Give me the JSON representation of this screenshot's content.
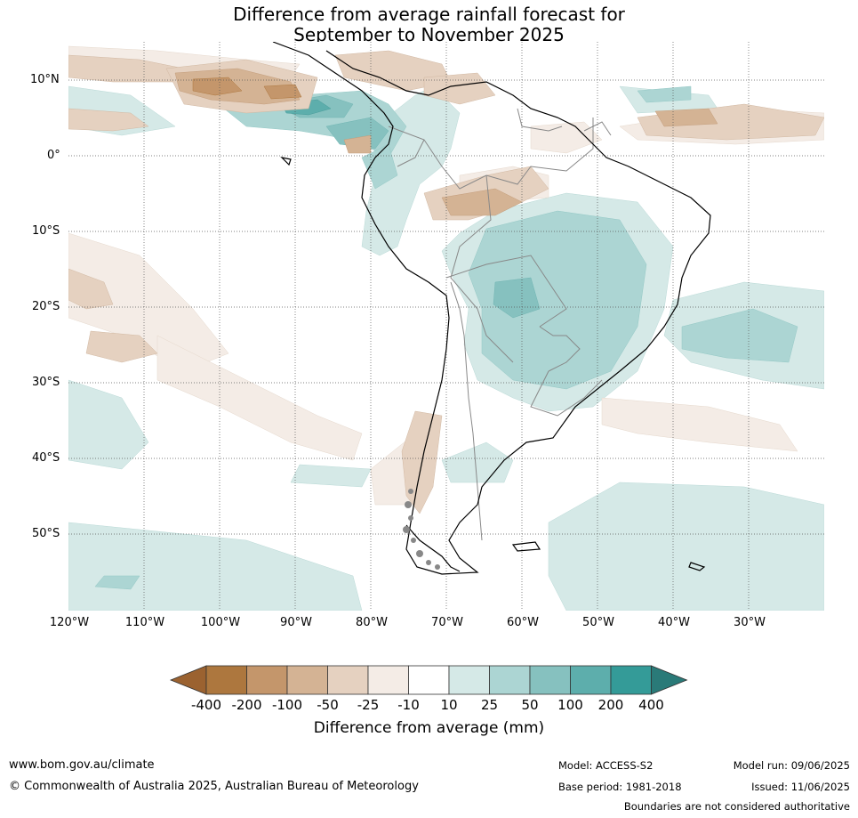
{
  "title": {
    "line1": "Difference from average rainfall forecast for",
    "line2": "September to November 2025"
  },
  "map": {
    "lat_labels": [
      "10°N",
      "0°",
      "10°S",
      "20°S",
      "30°S",
      "40°S",
      "50°S"
    ],
    "lon_labels": [
      "120°W",
      "110°W",
      "100°W",
      "90°W",
      "80°W",
      "70°W",
      "60°W",
      "50°W",
      "40°W",
      "30°W"
    ],
    "colors": {
      "ocean": "#ffffff",
      "coast": "#000000",
      "borders": "#888888",
      "grid": "#555555"
    }
  },
  "legend": {
    "title": "Difference from average (mm)",
    "ticks": [
      "-400",
      "-200",
      "-100",
      "-50",
      "-25",
      "-10",
      "10",
      "25",
      "50",
      "100",
      "200",
      "400"
    ],
    "colors": [
      "#9b6230",
      "#ad773e",
      "#c4966b",
      "#d4b394",
      "#e5d1c0",
      "#f4ece6",
      "#ffffff",
      "#d5e9e7",
      "#acd5d3",
      "#86c1bf",
      "#5daeac",
      "#349b98",
      "#2a7a78"
    ]
  },
  "footer": {
    "url": "www.bom.gov.au/climate",
    "copyright": "© Commonwealth of Australia 2025, Australian Bureau of Meteorology",
    "model": "Model: ACCESS-S2",
    "base_period": "Base period: 1981-2018",
    "model_run": "Model run: 09/06/2025",
    "issued": "Issued: 11/06/2025",
    "disclaimer": "Boundaries are not considered authoritative"
  }
}
